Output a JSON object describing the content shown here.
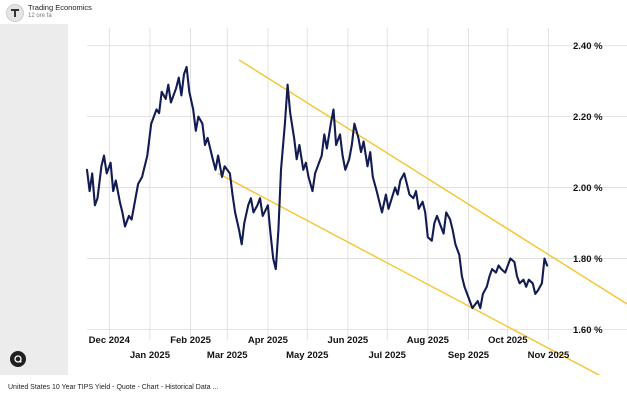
{
  "header": {
    "source_name": "Trading Economics",
    "time_ago": "12 ore fa"
  },
  "caption": "United States 10 Year TIPS Yield - Quote - Chart - Historical Data ...",
  "icons": {
    "avatar": "trading-economics-logo-icon",
    "lens": "google-lens-icon"
  },
  "colors": {
    "line": "#121c52",
    "channel": "#f5c42c",
    "grid": "#dcdcdc",
    "axis_text": "#111111"
  },
  "chart_data": {
    "type": "line",
    "title": "",
    "xlabel": "",
    "ylabel": "",
    "ylim": [
      1.57,
      2.45
    ],
    "xlim": [
      "2024-11-14",
      "2025-11-06"
    ],
    "grid": true,
    "y_ticks": [
      {
        "value": 2.4,
        "label": "2.40 %"
      },
      {
        "value": 2.2,
        "label": "2.20 %"
      },
      {
        "value": 2.0,
        "label": "2.00 %"
      },
      {
        "value": 1.8,
        "label": "1.80 %"
      },
      {
        "value": 1.6,
        "label": "1.60 %"
      }
    ],
    "x_ticks_upper": [
      {
        "date": "2024-12-01",
        "label": "Dec 2024"
      },
      {
        "date": "2025-02-01",
        "label": "Feb 2025"
      },
      {
        "date": "2025-04-01",
        "label": "Apr 2025"
      },
      {
        "date": "2025-06-01",
        "label": "Jun 2025"
      },
      {
        "date": "2025-08-01",
        "label": "Aug 2025"
      },
      {
        "date": "2025-10-01",
        "label": "Oct 2025"
      }
    ],
    "x_ticks_lower": [
      {
        "date": "2025-01-01",
        "label": "Jan 2025"
      },
      {
        "date": "2025-03-01",
        "label": "Mar 2025"
      },
      {
        "date": "2025-05-01",
        "label": "May 2025"
      },
      {
        "date": "2025-07-01",
        "label": "Jul 2025"
      },
      {
        "date": "2025-09-01",
        "label": "Sep 2025"
      },
      {
        "date": "2025-11-01",
        "label": "Nov 2025"
      }
    ],
    "series": [
      {
        "points": [
          [
            "2024-11-14",
            2.05
          ],
          [
            "2024-11-16",
            1.99
          ],
          [
            "2024-11-18",
            2.04
          ],
          [
            "2024-11-20",
            1.95
          ],
          [
            "2024-11-22",
            1.97
          ],
          [
            "2024-11-25",
            2.06
          ],
          [
            "2024-11-27",
            2.09
          ],
          [
            "2024-11-29",
            2.04
          ],
          [
            "2024-12-02",
            2.07
          ],
          [
            "2024-12-04",
            1.99
          ],
          [
            "2024-12-06",
            2.02
          ],
          [
            "2024-12-09",
            1.96
          ],
          [
            "2024-12-11",
            1.93
          ],
          [
            "2024-12-13",
            1.89
          ],
          [
            "2024-12-16",
            1.92
          ],
          [
            "2024-12-18",
            1.91
          ],
          [
            "2024-12-20",
            1.95
          ],
          [
            "2024-12-23",
            2.01
          ],
          [
            "2024-12-26",
            2.03
          ],
          [
            "2024-12-30",
            2.09
          ],
          [
            "2025-01-02",
            2.18
          ],
          [
            "2025-01-06",
            2.22
          ],
          [
            "2025-01-08",
            2.21
          ],
          [
            "2025-01-10",
            2.27
          ],
          [
            "2025-01-13",
            2.25
          ],
          [
            "2025-01-15",
            2.29
          ],
          [
            "2025-01-17",
            2.24
          ],
          [
            "2025-01-21",
            2.28
          ],
          [
            "2025-01-23",
            2.31
          ],
          [
            "2025-01-25",
            2.26
          ],
          [
            "2025-01-27",
            2.32
          ],
          [
            "2025-01-29",
            2.34
          ],
          [
            "2025-01-31",
            2.27
          ],
          [
            "2025-02-03",
            2.22
          ],
          [
            "2025-02-05",
            2.16
          ],
          [
            "2025-02-07",
            2.2
          ],
          [
            "2025-02-10",
            2.18
          ],
          [
            "2025-02-12",
            2.12
          ],
          [
            "2025-02-14",
            2.14
          ],
          [
            "2025-02-18",
            2.08
          ],
          [
            "2025-02-20",
            2.05
          ],
          [
            "2025-02-22",
            2.09
          ],
          [
            "2025-02-25",
            2.03
          ],
          [
            "2025-02-27",
            2.06
          ],
          [
            "2025-03-03",
            2.04
          ],
          [
            "2025-03-05",
            1.98
          ],
          [
            "2025-03-07",
            1.93
          ],
          [
            "2025-03-10",
            1.88
          ],
          [
            "2025-03-12",
            1.84
          ],
          [
            "2025-03-14",
            1.9
          ],
          [
            "2025-03-17",
            1.95
          ],
          [
            "2025-03-19",
            1.97
          ],
          [
            "2025-03-21",
            1.93
          ],
          [
            "2025-03-24",
            1.95
          ],
          [
            "2025-03-26",
            1.97
          ],
          [
            "2025-03-28",
            1.92
          ],
          [
            "2025-04-01",
            1.95
          ],
          [
            "2025-04-03",
            1.87
          ],
          [
            "2025-04-05",
            1.8
          ],
          [
            "2025-04-07",
            1.77
          ],
          [
            "2025-04-09",
            1.88
          ],
          [
            "2025-04-11",
            2.05
          ],
          [
            "2025-04-14",
            2.18
          ],
          [
            "2025-04-16",
            2.29
          ],
          [
            "2025-04-18",
            2.21
          ],
          [
            "2025-04-21",
            2.14
          ],
          [
            "2025-04-23",
            2.08
          ],
          [
            "2025-04-25",
            2.12
          ],
          [
            "2025-04-28",
            2.05
          ],
          [
            "2025-04-30",
            2.07
          ],
          [
            "2025-05-02",
            2.03
          ],
          [
            "2025-05-05",
            1.99
          ],
          [
            "2025-05-07",
            2.04
          ],
          [
            "2025-05-09",
            2.06
          ],
          [
            "2025-05-12",
            2.09
          ],
          [
            "2025-05-14",
            2.15
          ],
          [
            "2025-05-16",
            2.11
          ],
          [
            "2025-05-19",
            2.18
          ],
          [
            "2025-05-21",
            2.22
          ],
          [
            "2025-05-23",
            2.12
          ],
          [
            "2025-05-26",
            2.15
          ],
          [
            "2025-05-28",
            2.09
          ],
          [
            "2025-05-30",
            2.05
          ],
          [
            "2025-06-02",
            2.08
          ],
          [
            "2025-06-04",
            2.12
          ],
          [
            "2025-06-06",
            2.18
          ],
          [
            "2025-06-09",
            2.14
          ],
          [
            "2025-06-11",
            2.1
          ],
          [
            "2025-06-13",
            2.13
          ],
          [
            "2025-06-16",
            2.06
          ],
          [
            "2025-06-18",
            2.1
          ],
          [
            "2025-06-20",
            2.03
          ],
          [
            "2025-06-23",
            1.99
          ],
          [
            "2025-06-25",
            1.96
          ],
          [
            "2025-06-27",
            1.93
          ],
          [
            "2025-06-30",
            1.98
          ],
          [
            "2025-07-02",
            1.94
          ],
          [
            "2025-07-07",
            2.0
          ],
          [
            "2025-07-09",
            1.98
          ],
          [
            "2025-07-11",
            2.02
          ],
          [
            "2025-07-14",
            2.04
          ],
          [
            "2025-07-16",
            2.01
          ],
          [
            "2025-07-18",
            1.98
          ],
          [
            "2025-07-21",
            1.97
          ],
          [
            "2025-07-23",
            1.99
          ],
          [
            "2025-07-25",
            1.94
          ],
          [
            "2025-07-28",
            1.96
          ],
          [
            "2025-07-30",
            1.93
          ],
          [
            "2025-08-01",
            1.86
          ],
          [
            "2025-08-04",
            1.85
          ],
          [
            "2025-08-06",
            1.9
          ],
          [
            "2025-08-08",
            1.92
          ],
          [
            "2025-08-11",
            1.89
          ],
          [
            "2025-08-13",
            1.87
          ],
          [
            "2025-08-15",
            1.93
          ],
          [
            "2025-08-18",
            1.91
          ],
          [
            "2025-08-20",
            1.88
          ],
          [
            "2025-08-22",
            1.84
          ],
          [
            "2025-08-25",
            1.81
          ],
          [
            "2025-08-27",
            1.75
          ],
          [
            "2025-08-29",
            1.72
          ],
          [
            "2025-09-02",
            1.68
          ],
          [
            "2025-09-04",
            1.66
          ],
          [
            "2025-09-08",
            1.68
          ],
          [
            "2025-09-10",
            1.66
          ],
          [
            "2025-09-12",
            1.7
          ],
          [
            "2025-09-15",
            1.72
          ],
          [
            "2025-09-17",
            1.75
          ],
          [
            "2025-09-19",
            1.77
          ],
          [
            "2025-09-22",
            1.76
          ],
          [
            "2025-09-24",
            1.78
          ],
          [
            "2025-09-26",
            1.77
          ],
          [
            "2025-09-29",
            1.76
          ],
          [
            "2025-10-01",
            1.78
          ],
          [
            "2025-10-03",
            1.8
          ],
          [
            "2025-10-06",
            1.79
          ],
          [
            "2025-10-08",
            1.75
          ],
          [
            "2025-10-10",
            1.73
          ],
          [
            "2025-10-13",
            1.74
          ],
          [
            "2025-10-15",
            1.72
          ],
          [
            "2025-10-17",
            1.74
          ],
          [
            "2025-10-20",
            1.73
          ],
          [
            "2025-10-22",
            1.7
          ],
          [
            "2025-10-24",
            1.71
          ],
          [
            "2025-10-27",
            1.73
          ],
          [
            "2025-10-29",
            1.8
          ],
          [
            "2025-10-31",
            1.78
          ]
        ]
      }
    ],
    "trend_channel": {
      "upper": [
        [
          "2025-03-10",
          2.36
        ],
        [
          "2025-11-10",
          1.79
        ]
      ],
      "lower": [
        [
          "2025-02-22",
          2.04
        ],
        [
          "2025-10-15",
          1.58
        ]
      ]
    }
  }
}
